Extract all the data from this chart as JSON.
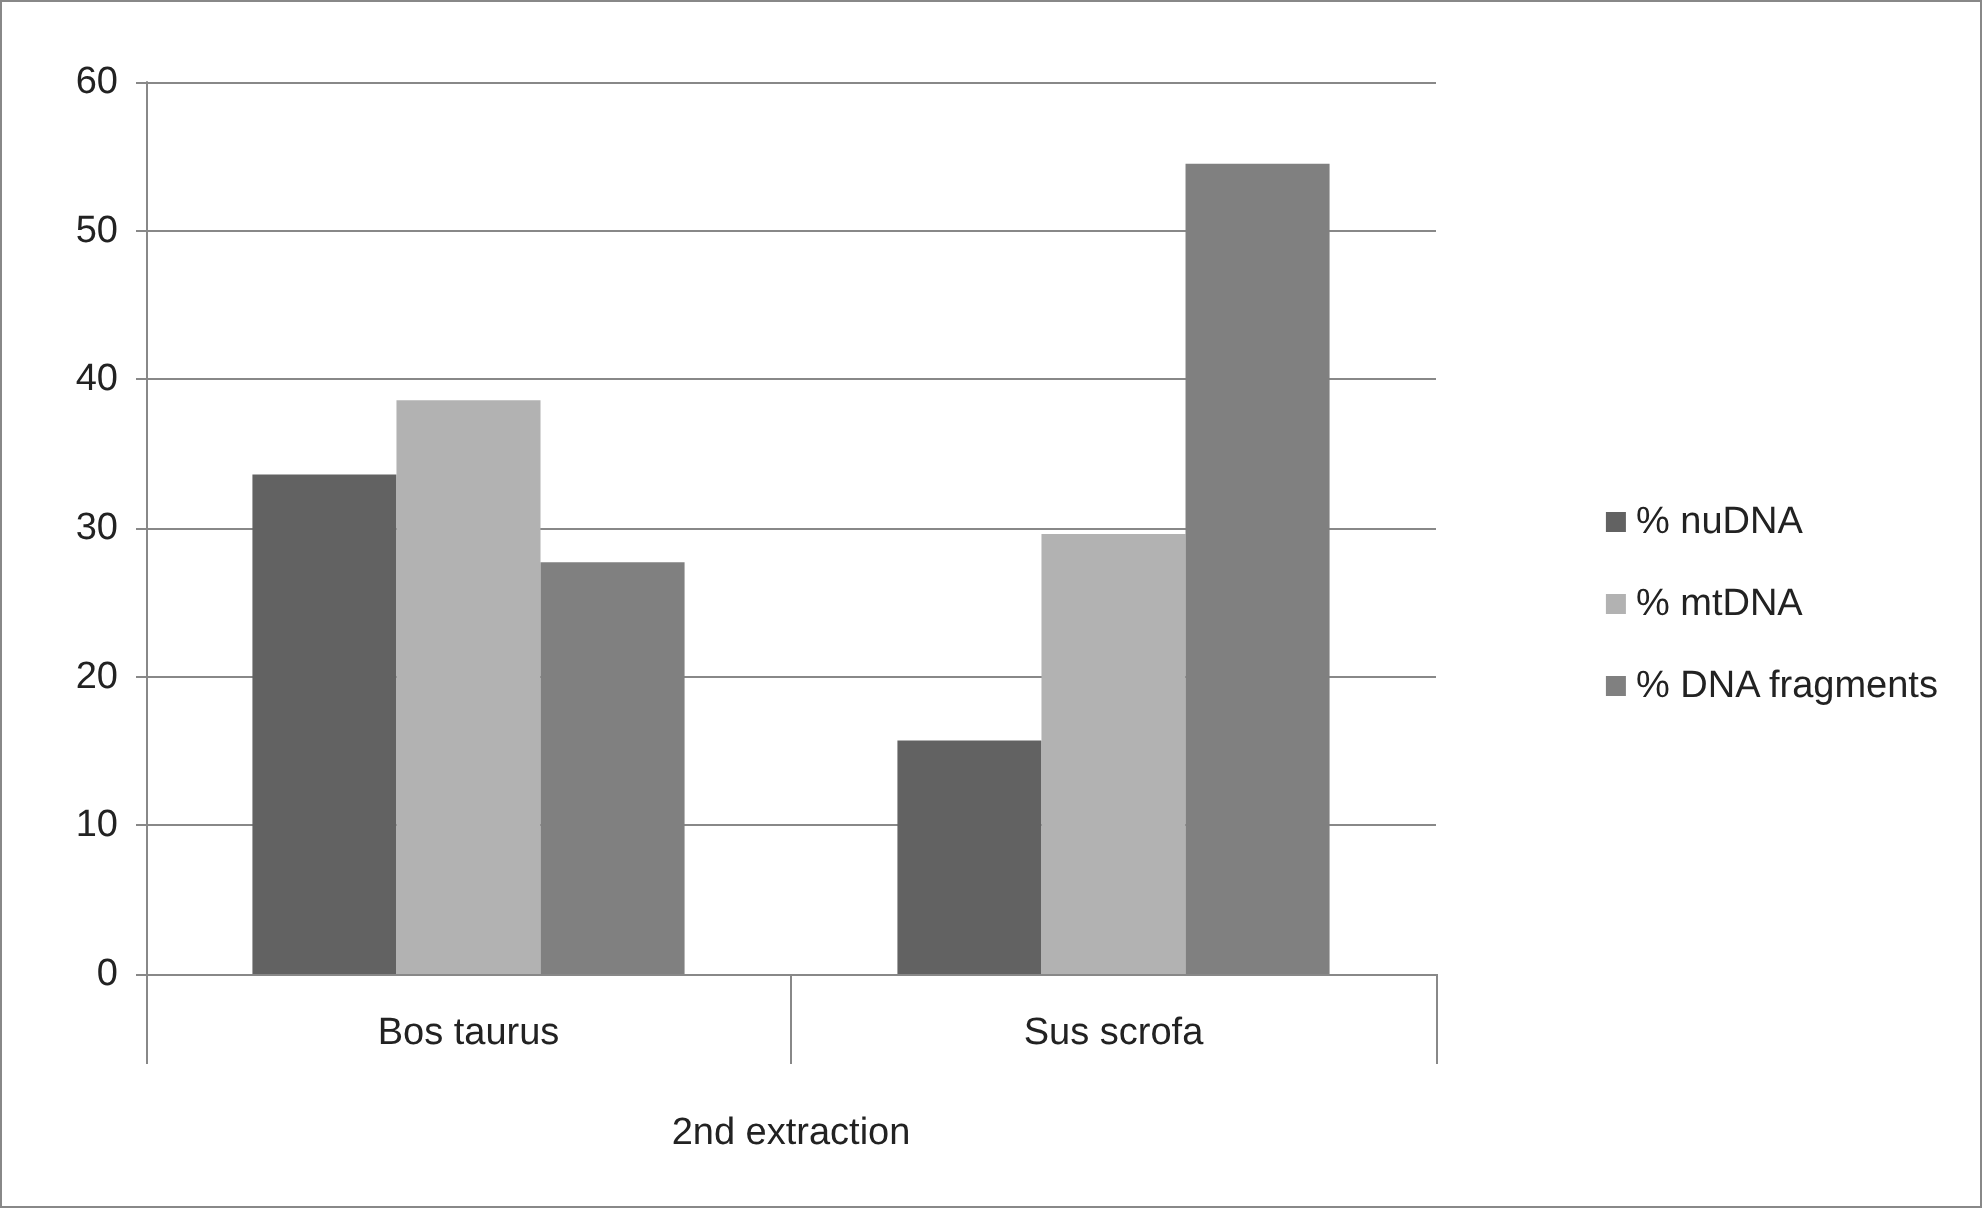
{
  "chart_data": {
    "type": "bar",
    "categories": [
      "Bos taurus",
      "Sus scrofa"
    ],
    "xlabel": "2nd extraction",
    "series": [
      {
        "name": "% nuDNA",
        "color": "#626262",
        "values": [
          33.6,
          15.7
        ]
      },
      {
        "name": "% mtDNA",
        "color": "#b2b2b2",
        "values": [
          38.6,
          29.6
        ]
      },
      {
        "name": "% DNA fragments",
        "color": "#808080",
        "values": [
          27.7,
          54.5
        ]
      }
    ],
    "ylim": [
      0,
      60
    ],
    "yticks": [
      0,
      10,
      20,
      30,
      40,
      50,
      60
    ],
    "grid": "y",
    "legend": "right"
  }
}
